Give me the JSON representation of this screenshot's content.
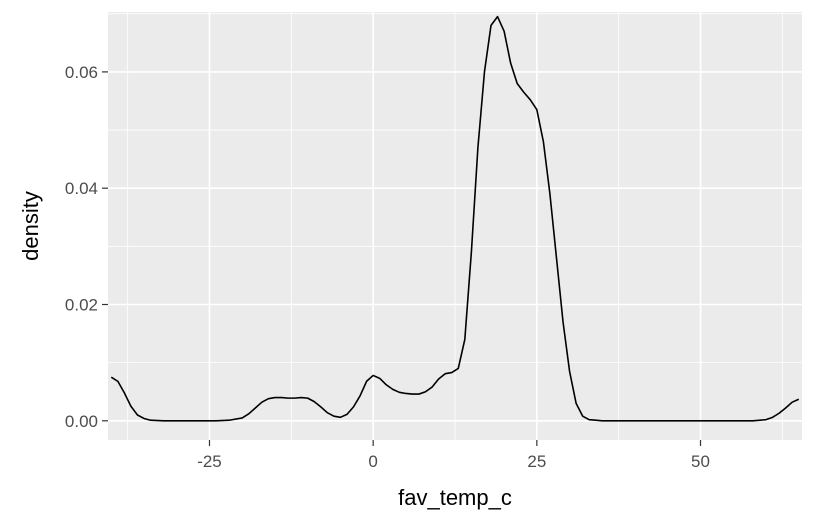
{
  "chart_data": {
    "type": "line",
    "title": "",
    "xlabel": "fav_temp_c",
    "ylabel": "density",
    "xlim": [
      -40.5,
      65.5
    ],
    "ylim": [
      -0.0033,
      0.0703
    ],
    "x_ticks": [
      -25,
      0,
      25,
      50
    ],
    "x_tick_labels": [
      "-25",
      "0",
      "25",
      "50"
    ],
    "y_ticks": [
      0.0,
      0.02,
      0.04,
      0.06
    ],
    "y_tick_labels": [
      "0.00",
      "0.02",
      "0.04",
      "0.06"
    ],
    "grid": true,
    "panel_background": "#ebebeb",
    "grid_color": "#ffffff",
    "line_color": "#000000",
    "series": [
      {
        "x": [
          -40,
          -39,
          -38,
          -37,
          -36,
          -35,
          -34,
          -32,
          -30,
          -27,
          -24,
          -22,
          -20,
          -19,
          -18,
          -17,
          -16,
          -15,
          -14,
          -13,
          -12,
          -11,
          -10,
          -9,
          -8,
          -7,
          -6,
          -5,
          -4,
          -3,
          -2,
          -1,
          0,
          1,
          2,
          3,
          4,
          5,
          6,
          7,
          8,
          9,
          10,
          11,
          12,
          13,
          14,
          15,
          16,
          17,
          18,
          19,
          20,
          21,
          22,
          23,
          24,
          25,
          26,
          27,
          28,
          29,
          30,
          31,
          32,
          33,
          34,
          35,
          36,
          37,
          40,
          45,
          50,
          55,
          58,
          60,
          61,
          62,
          63,
          64,
          65
        ],
        "y": [
          0.0075,
          0.0068,
          0.0048,
          0.0025,
          0.001,
          0.0004,
          0.0001,
          0.0,
          0.0,
          0.0,
          0.0,
          0.0001,
          0.0005,
          0.0012,
          0.0022,
          0.0032,
          0.0038,
          0.004,
          0.004,
          0.0039,
          0.0039,
          0.004,
          0.0039,
          0.0033,
          0.0024,
          0.0014,
          0.0008,
          0.0006,
          0.0011,
          0.0024,
          0.0043,
          0.0068,
          0.0078,
          0.0073,
          0.0062,
          0.0054,
          0.0049,
          0.0047,
          0.0046,
          0.0046,
          0.005,
          0.0058,
          0.0072,
          0.0081,
          0.0083,
          0.009,
          0.014,
          0.029,
          0.047,
          0.06,
          0.068,
          0.0695,
          0.067,
          0.0615,
          0.058,
          0.0565,
          0.0552,
          0.0535,
          0.048,
          0.039,
          0.028,
          0.017,
          0.0085,
          0.003,
          0.0008,
          0.0002,
          0.0001,
          0.0,
          0.0,
          0.0,
          0.0,
          0.0,
          0.0,
          0.0,
          0.0,
          0.0002,
          0.0006,
          0.0013,
          0.0022,
          0.0032,
          0.0037
        ]
      }
    ]
  }
}
